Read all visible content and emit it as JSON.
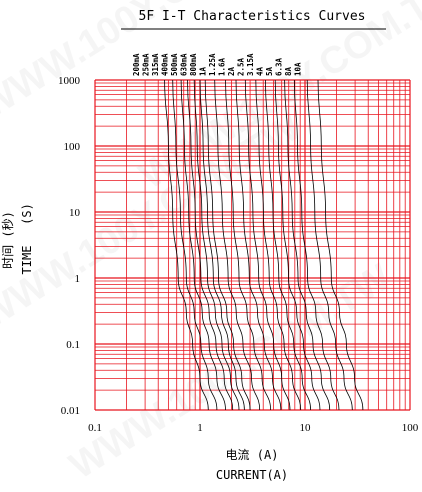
{
  "chart_data": {
    "type": "line",
    "title": "5F I-T Characteristics Curves",
    "xlabel_cn": "电流 (A)",
    "xlabel": "CURRENT(A)",
    "ylabel_cn": "时间 (秒)",
    "ylabel_paren": "(S)",
    "ylabel": "TIME",
    "xscale": "log",
    "yscale": "log",
    "xlim": [
      0.1,
      100
    ],
    "ylim": [
      0.01,
      1000
    ],
    "x_ticks": [
      "0.1",
      "1",
      "10",
      "100"
    ],
    "y_ticks": [
      "1000",
      "100",
      "10",
      "1",
      "0.1",
      "0.01"
    ],
    "grid": true,
    "grid_color": "#e8141e",
    "line_color": "#000000",
    "series": [
      {
        "name": "200mA",
        "x": [
          0.46,
          0.5,
          0.55,
          0.62,
          0.74,
          0.85,
          1.0,
          1.2
        ]
      },
      {
        "name": "250mA",
        "x": [
          0.55,
          0.59,
          0.65,
          0.74,
          0.88,
          1.02,
          1.2,
          1.45
        ]
      },
      {
        "name": "315mA",
        "x": [
          0.66,
          0.71,
          0.78,
          0.88,
          1.05,
          1.22,
          1.45,
          1.75
        ]
      },
      {
        "name": "400mA",
        "x": [
          0.76,
          0.82,
          0.9,
          1.02,
          1.22,
          1.42,
          1.7,
          2.05
        ]
      },
      {
        "name": "500mA",
        "x": [
          0.88,
          0.94,
          1.04,
          1.18,
          1.4,
          1.62,
          1.95,
          2.35
        ]
      },
      {
        "name": "630mA",
        "x": [
          1.0,
          1.07,
          1.18,
          1.34,
          1.6,
          1.86,
          2.2,
          2.65
        ]
      },
      {
        "name": "800mA",
        "x": [
          1.12,
          1.2,
          1.32,
          1.5,
          1.8,
          2.09,
          2.5,
          3.0
        ]
      },
      {
        "name": "1A",
        "x": [
          1.38,
          1.48,
          1.63,
          1.85,
          2.21,
          2.57,
          3.1,
          3.7
        ]
      },
      {
        "name": "1.25A",
        "x": [
          1.75,
          1.88,
          2.07,
          2.35,
          2.8,
          3.26,
          3.9,
          4.7
        ]
      },
      {
        "name": "1.6A",
        "x": [
          2.2,
          2.36,
          2.6,
          2.95,
          3.53,
          4.1,
          4.9,
          5.9
        ]
      },
      {
        "name": "2A",
        "x": [
          2.7,
          2.9,
          3.19,
          3.62,
          4.33,
          5.03,
          6.0,
          7.2
        ]
      },
      {
        "name": "2.5A",
        "x": [
          3.4,
          3.65,
          4.02,
          4.56,
          5.45,
          6.33,
          7.6,
          9.1
        ]
      },
      {
        "name": "3.15A",
        "x": [
          4.2,
          4.51,
          4.96,
          5.63,
          6.73,
          7.82,
          9.4,
          11.3
        ]
      },
      {
        "name": "4A",
        "x": [
          5.2,
          5.58,
          6.14,
          6.97,
          8.33,
          9.68,
          11.6,
          13.9
        ]
      },
      {
        "name": "5A",
        "x": [
          6.4,
          6.87,
          7.56,
          8.58,
          10.26,
          11.92,
          14.3,
          17.2
        ]
      },
      {
        "name": "6.3A",
        "x": [
          7.9,
          8.48,
          9.33,
          10.59,
          12.66,
          14.71,
          17.6,
          21.1
        ]
      },
      {
        "name": "8A",
        "x": [
          10.5,
          11.3,
          12.4,
          14.1,
          16.8,
          19.6,
          23.5,
          28.2
        ]
      },
      {
        "name": "10A",
        "x": [
          13.3,
          14.3,
          15.7,
          17.8,
          21.3,
          24.8,
          29.7,
          35.6
        ]
      }
    ],
    "series_times": [
      1000,
      100,
      10,
      1,
      0.3,
      0.1,
      0.03,
      0.01
    ]
  },
  "watermark": "WWW.100Y.COM.TW"
}
